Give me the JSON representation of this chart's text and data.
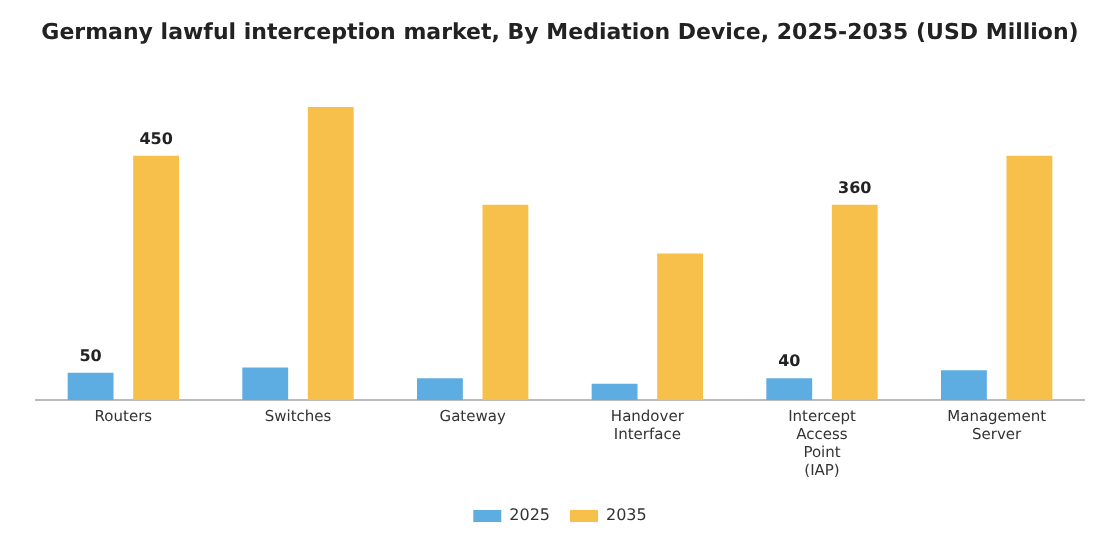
{
  "chart_data": {
    "type": "bar",
    "title": "Germany lawful interception market, By Mediation Device, 2025-2035 (USD Million)",
    "categories": [
      "Routers",
      "Switches",
      "Gateway",
      "Handover Interface",
      "Intercept Access Point (IAP)",
      "Management Server"
    ],
    "series": [
      {
        "name": "2025",
        "color": "#5dade2",
        "values": [
          50,
          60,
          40,
          30,
          40,
          55
        ],
        "value_labels": [
          "50",
          null,
          null,
          null,
          "40",
          null
        ]
      },
      {
        "name": "2035",
        "color": "#f7c04a",
        "values": [
          450,
          540,
          360,
          270,
          360,
          450
        ],
        "value_labels": [
          "450",
          null,
          null,
          null,
          "360",
          null
        ]
      }
    ],
    "legend": "bottom",
    "grid": false
  }
}
